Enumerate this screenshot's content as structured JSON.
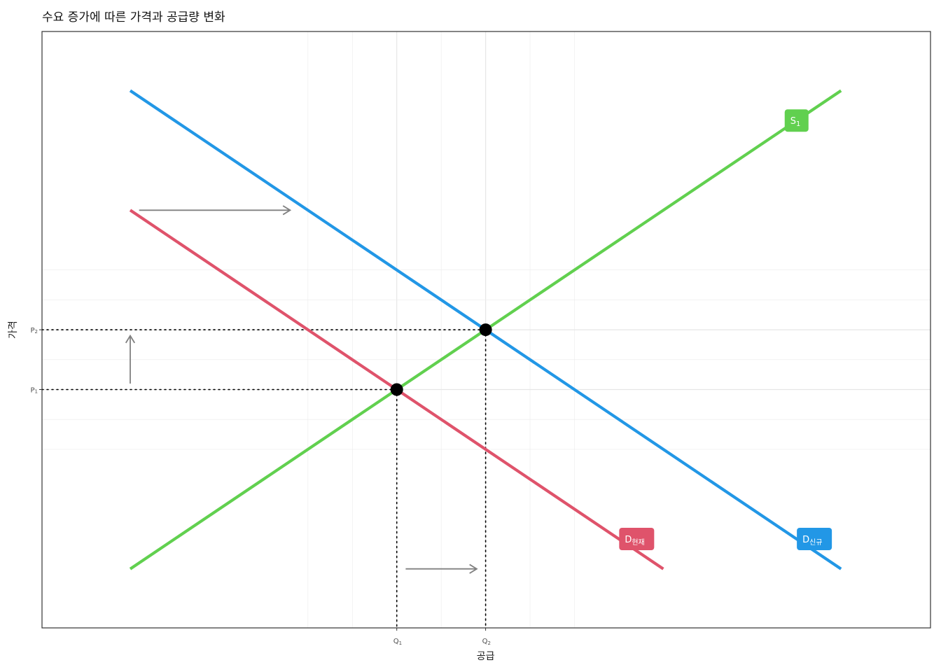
{
  "chart_data": {
    "type": "line",
    "title": "수요 증가에 따른 가격과 공급량 변화",
    "xlabel": "공급",
    "ylabel": "가격",
    "xlim": [
      0,
      10
    ],
    "ylim": [
      0,
      10
    ],
    "grid": true,
    "x_ticks": [
      {
        "label": "Q",
        "sub": "1",
        "value": 4
      },
      {
        "label": "Q",
        "sub": "2",
        "value": 5
      }
    ],
    "y_ticks": [
      {
        "label": "P",
        "sub": "2",
        "value": 5
      },
      {
        "label": "P",
        "sub": "1",
        "value": 4
      }
    ],
    "series": [
      {
        "name": "S",
        "sub": "1",
        "color": "#61D04F",
        "points": [
          [
            1,
            1
          ],
          [
            9,
            9
          ]
        ],
        "label_at": [
          8.5,
          8.5
        ]
      },
      {
        "name": "D",
        "sub": "현재",
        "color": "#DF536B",
        "points": [
          [
            1,
            7
          ],
          [
            7,
            1
          ]
        ],
        "label_at": [
          6.7,
          1.5
        ]
      },
      {
        "name": "D",
        "sub": "신규",
        "color": "#2297E6",
        "points": [
          [
            1,
            9
          ],
          [
            9,
            1
          ]
        ],
        "label_at": [
          8.7,
          1.5
        ]
      }
    ],
    "equilibria": [
      {
        "x": 4,
        "y": 4
      },
      {
        "x": 5,
        "y": 5
      }
    ],
    "arrows": [
      {
        "from": [
          1.1,
          7
        ],
        "to": [
          2.8,
          7
        ]
      },
      {
        "from": [
          1,
          4.1
        ],
        "to": [
          1,
          4.9
        ]
      },
      {
        "from": [
          4.1,
          1
        ],
        "to": [
          4.9,
          1
        ]
      }
    ]
  }
}
